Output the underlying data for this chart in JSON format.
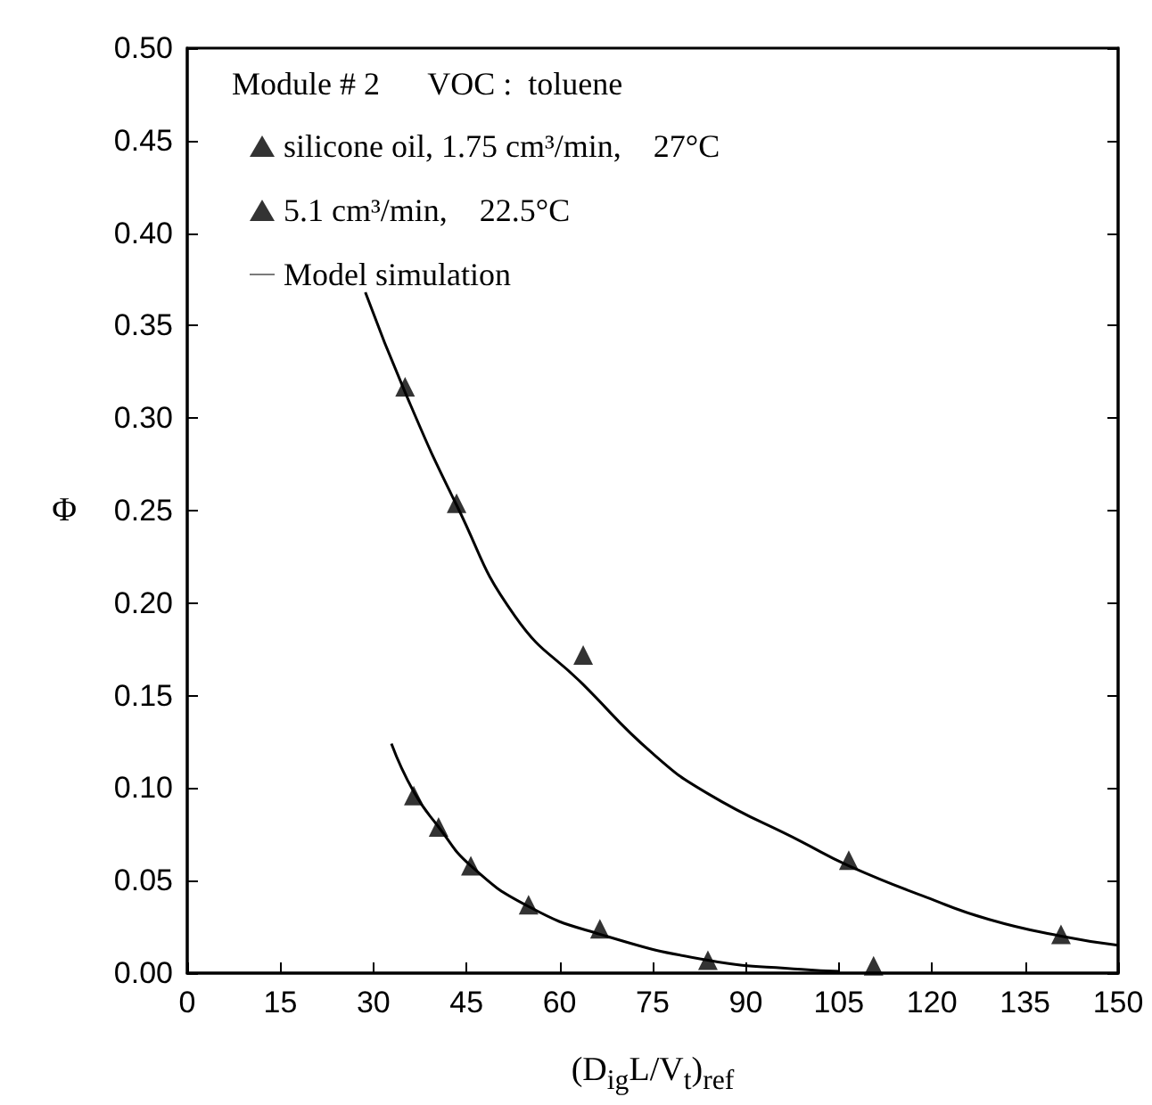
{
  "chart_data": {
    "type": "scatter",
    "xlabel": "(D$_{ig}$L/V$_{t}$)$_{ref}$",
    "ylabel": "Φ",
    "annotations": [
      "Module # 2      VOC :  toluene"
    ],
    "xlim": [
      0,
      150
    ],
    "xticks": [
      0,
      15,
      30,
      45,
      60,
      75,
      90,
      105,
      120,
      135,
      150
    ],
    "ylim": [
      0,
      0.5
    ],
    "yticks": [
      {
        "value": 0,
        "label": "0.00"
      },
      0.05,
      {
        "value": 0.1,
        "label": "0.10"
      },
      0.15,
      {
        "value": 0.2,
        "label": "0.20"
      },
      0.25,
      {
        "value": 0.3,
        "label": "0.30"
      },
      0.35,
      {
        "value": 0.4,
        "label": "0.40"
      },
      0.45,
      {
        "value": 0.5,
        "label": "0.50"
      }
    ],
    "grid": false,
    "legend": "top left",
    "marker": "triangle",
    "series": [
      {
        "name": "silicone oil, 1.75 cm³/min,    27°C",
        "color": "#000000",
        "x": [
          36.5,
          40.5,
          45.7,
          55.0,
          66.5,
          83.9,
          110.6
        ],
        "values": [
          0.096,
          0.079,
          0.058,
          0.037,
          0.024,
          0.007,
          0.004
        ]
      },
      {
        "name": "5.1 cm³/min,    22.5°C",
        "color": "#000000",
        "x": [
          35.1,
          43.4,
          63.8,
          106.6,
          140.8
        ],
        "values": [
          0.317,
          0.254,
          0.172,
          0.061,
          0.021
        ]
      },
      {
        "name": "Model simulation",
        "type": "line",
        "color": "#000000",
        "marker": "none",
        "x": [
          28.7,
          35.1,
          43.4,
          52.8,
          63.8,
          74.9,
          83.9,
          99,
          106.6,
          119.1,
          129.2,
          140.8,
          150
        ],
        "values": [
          0.368,
          0.314,
          0.253,
          0.193,
          0.156,
          0.119,
          0.097,
          0.071,
          0.058,
          0.041,
          0.029,
          0.02,
          0.015
        ]
      },
      {
        "type": "line",
        "color": "#000000",
        "marker": "none",
        "x": [
          32.9,
          36.5,
          40.5,
          45.7,
          55,
          66.5,
          83.9,
          99,
          105.1
        ],
        "values": [
          0.124,
          0.098,
          0.079,
          0.058,
          0.036,
          0.021,
          0.007,
          0.002,
          0.001
        ]
      }
    ]
  }
}
